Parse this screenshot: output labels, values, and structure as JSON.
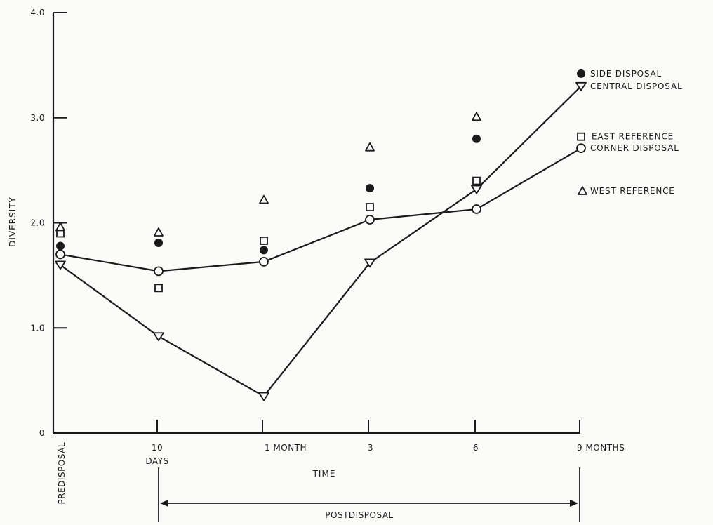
{
  "chart_data": {
    "type": "line",
    "title": "",
    "xlabel": "TIME",
    "ylabel": "DIVERSITY",
    "ylim": [
      0,
      4.0
    ],
    "yticks": [
      "0",
      "1.0",
      "2.0",
      "3.0",
      "4.0"
    ],
    "categories": [
      "PREDISPOSAL",
      "10 DAYS",
      "1 MONTH",
      "3",
      "6",
      "9 MONTHS"
    ],
    "category_labels": {
      "predisposal": "PREDISPOSAL",
      "days10_top": "10",
      "days10_bottom": "DAYS",
      "month1": "1 MONTH",
      "month3": "3",
      "month6": "6",
      "month9": "9 MONTHS"
    },
    "period_label": "POSTDISPOSAL",
    "grid": false,
    "legend_position": "right",
    "series": [
      {
        "name": "SIDE DISPOSAL",
        "marker": "filled-circle",
        "connected": false,
        "values": [
          1.78,
          1.81,
          1.74,
          2.33,
          2.8,
          3.42
        ]
      },
      {
        "name": "CENTRAL DISPOSAL",
        "marker": "triangle-down",
        "connected": true,
        "values": [
          1.6,
          0.92,
          0.35,
          1.62,
          2.32,
          3.3
        ]
      },
      {
        "name": "EAST REFERENCE",
        "marker": "square",
        "connected": false,
        "values": [
          1.9,
          1.38,
          1.83,
          2.15,
          2.4,
          2.82
        ]
      },
      {
        "name": "CORNER DISPOSAL",
        "marker": "open-circle",
        "connected": true,
        "values": [
          1.7,
          1.54,
          1.63,
          2.03,
          2.13,
          2.71
        ]
      },
      {
        "name": "WEST REFERENCE",
        "marker": "triangle-up",
        "connected": false,
        "values": [
          1.96,
          1.91,
          2.22,
          2.72,
          3.01,
          null
        ]
      }
    ],
    "colors": {
      "ink": "#1a1a1a",
      "background": "#fbfbf9"
    }
  }
}
